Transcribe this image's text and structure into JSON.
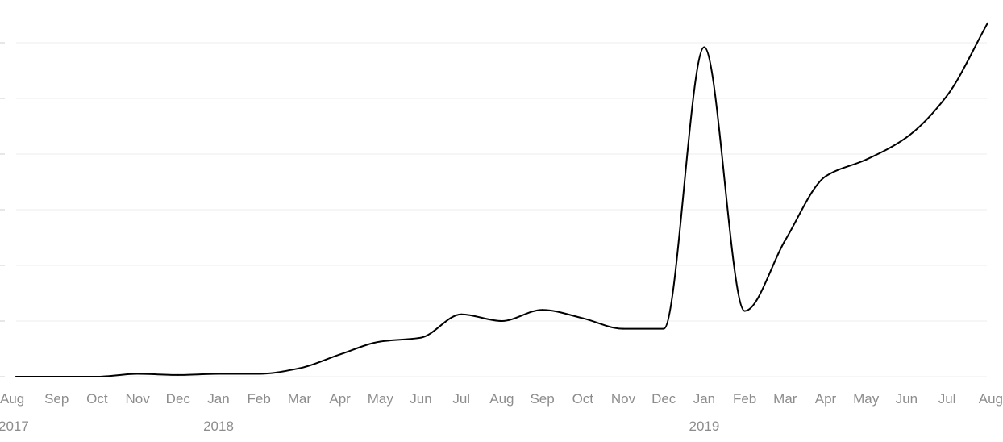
{
  "chart_data": {
    "type": "line",
    "title": "",
    "xlabel": "",
    "ylabel": "",
    "grid": true,
    "ylim": [
      0,
      6.3
    ],
    "y_gridlines": [
      0,
      1,
      2,
      3,
      4,
      5,
      6
    ],
    "x_tick_labels": [
      "Aug",
      "Sep",
      "Oct",
      "Nov",
      "Dec",
      "Jan",
      "Feb",
      "Mar",
      "Apr",
      "May",
      "Jun",
      "Jul",
      "Aug",
      "Sep",
      "Oct",
      "Nov",
      "Dec",
      "Jan",
      "Feb",
      "Mar",
      "Apr",
      "May",
      "Jun",
      "Jul",
      "Aug"
    ],
    "year_labels": [
      {
        "index": 0,
        "label": "2017"
      },
      {
        "index": 5,
        "label": "2018"
      },
      {
        "index": 17,
        "label": "2019"
      }
    ],
    "series": [
      {
        "color": "#000000",
        "x": [
          "2017-08",
          "2017-09",
          "2017-10",
          "2017-11",
          "2017-12",
          "2018-01",
          "2018-02",
          "2018-03",
          "2018-04",
          "2018-05",
          "2018-06",
          "2018-07",
          "2018-08",
          "2018-09",
          "2018-10",
          "2018-11",
          "2018-12",
          "2019-01",
          "2019-02",
          "2019-03",
          "2019-04",
          "2019-05",
          "2019-06",
          "2019-07",
          "2019-08"
        ],
        "values": [
          0,
          0,
          0,
          0.05,
          0.03,
          0.05,
          0.05,
          0.15,
          0.4,
          0.63,
          0.7,
          1.12,
          1.0,
          1.2,
          1.05,
          0.86,
          0.86,
          5.92,
          1.18,
          2.45,
          3.6,
          3.9,
          4.3,
          5.05,
          6.35
        ]
      }
    ]
  }
}
